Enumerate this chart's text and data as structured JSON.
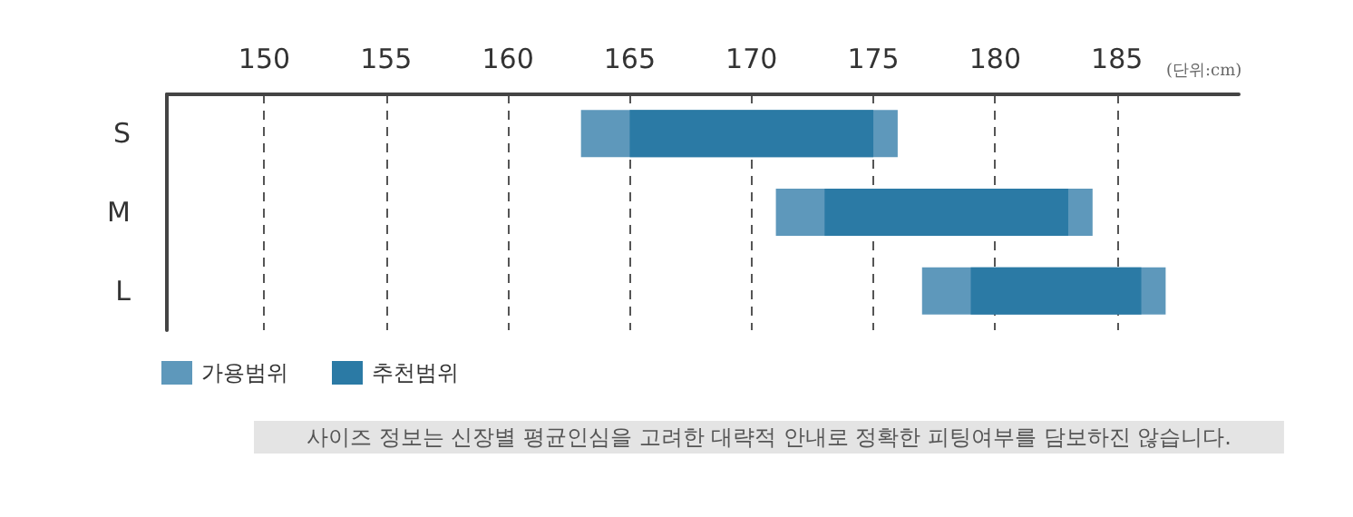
{
  "chart_data": {
    "type": "bar",
    "orientation": "horizontal",
    "xlabel": "(단위:cm)",
    "categories": [
      "S",
      "M",
      "L"
    ],
    "series": [
      {
        "name": "가용범위",
        "color": "#5e98bb",
        "base": [
          163,
          171,
          177
        ],
        "values": [
          13,
          13,
          10
        ]
      },
      {
        "name": "추천범위",
        "color": "#2b7aa5",
        "base": [
          165,
          173,
          179
        ],
        "values": [
          10,
          10,
          7
        ]
      }
    ],
    "xlim": [
      146,
      190
    ],
    "xticks": [
      150,
      155,
      160,
      165,
      170,
      175,
      180,
      185
    ],
    "grid": "x",
    "legend": "bottom left",
    "annotations": [
      "사이즈 정보는 신장별 평균인심을 고려한 대략적 안내로 정확한 피팅여부를 담보하진 않습니다."
    ]
  }
}
